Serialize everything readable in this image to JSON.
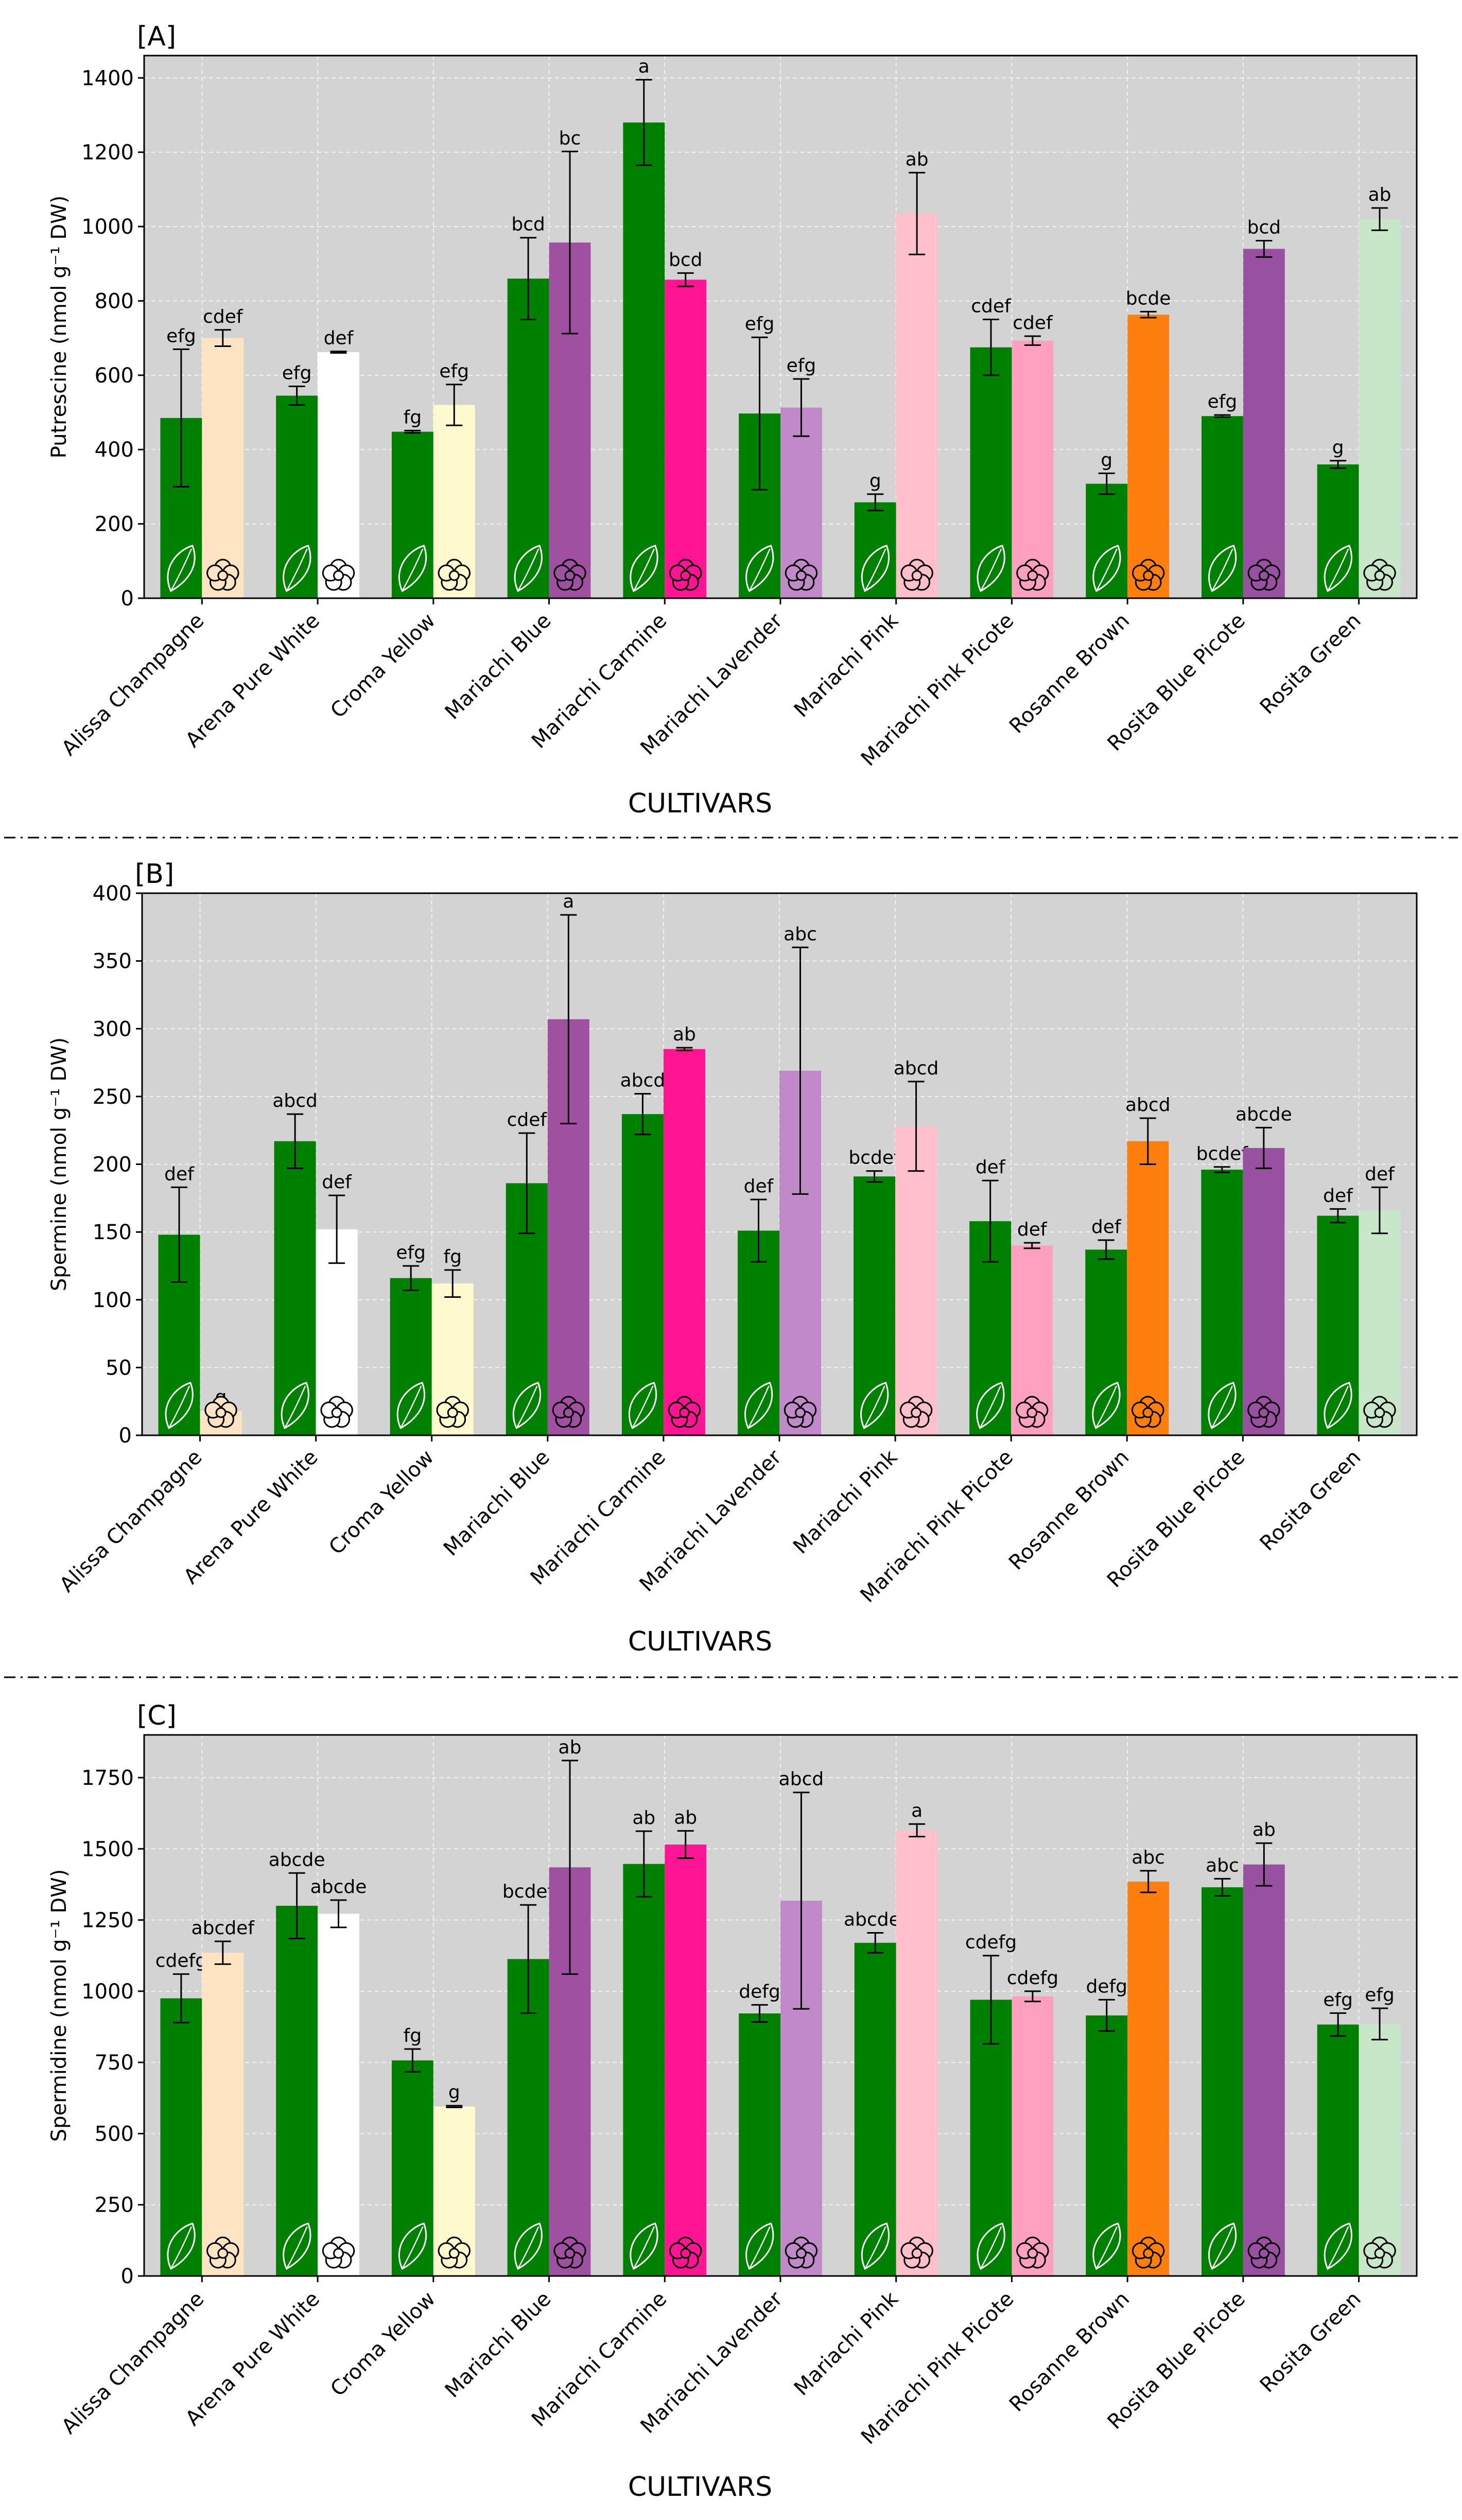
{
  "colors": {
    "background": "#d3d3d3",
    "leaf": "#008000",
    "grid": "#f2f2f2",
    "separator": "#000000"
  },
  "figure": {
    "xlabel": "CULTIVARS",
    "categories": [
      "Alissa Champagne",
      "Arena Pure White",
      "Croma Yellow",
      "Mariachi Blue",
      "Mariachi Carmine",
      "Mariachi Lavender",
      "Mariachi Pink",
      "Mariachi Pink Picote",
      "Rosanne Brown",
      "Rosita Blue Picote",
      "Rosita Green"
    ],
    "flower_colors": [
      "#ffe4c4",
      "#ffffff",
      "#fffacd",
      "#a050a0",
      "#ff1493",
      "#c08ac8",
      "#ffc0cb",
      "#ffa0c0",
      "#ff7f0e",
      "#9850a0",
      "#c8e6c8"
    ],
    "series_names": [
      "Leaf",
      "Flower"
    ],
    "icon_names": [
      "leaf-icon",
      "flower-icon"
    ]
  },
  "chart_data": [
    {
      "type": "bar",
      "tag": "[A]",
      "ylabel": "Putrescine (nmol g⁻¹ DW)",
      "ylim": [
        0,
        1460
      ],
      "yticks": [
        0,
        200,
        400,
        600,
        800,
        1000,
        1200,
        1400
      ],
      "xlabel": "CULTIVARS",
      "series": [
        {
          "name": "Leaf",
          "values": [
            485,
            545,
            448,
            860,
            1280,
            497,
            258,
            675,
            308,
            490,
            360
          ],
          "errors": [
            185,
            25,
            3,
            110,
            115,
            205,
            22,
            75,
            28,
            3,
            10
          ],
          "letters": [
            "efg",
            "efg",
            "fg",
            "bcd",
            "a",
            "efg",
            "g",
            "cdef",
            "g",
            "efg",
            "g"
          ]
        },
        {
          "name": "Flower",
          "values": [
            700,
            662,
            520,
            957,
            857,
            513,
            1035,
            693,
            763,
            940,
            1020
          ],
          "errors": [
            22,
            2,
            55,
            245,
            18,
            77,
            110,
            12,
            8,
            22,
            30
          ],
          "letters": [
            "cdef",
            "def",
            "efg",
            "bc",
            "bcd",
            "efg",
            "ab",
            "cdef",
            "bcde",
            "bcd",
            "ab"
          ]
        }
      ]
    },
    {
      "type": "bar",
      "tag": "[B]",
      "ylabel": "Spermine (nmol g⁻¹ DW)",
      "ylim": [
        0,
        400
      ],
      "yticks": [
        0,
        50,
        100,
        150,
        200,
        250,
        300,
        350,
        400
      ],
      "xlabel": "CULTIVARS",
      "series": [
        {
          "name": "Leaf",
          "values": [
            148,
            217,
            116,
            186,
            237,
            151,
            191,
            158,
            137,
            196,
            162
          ],
          "errors": [
            35,
            20,
            9,
            37,
            15,
            23,
            4,
            30,
            7,
            2,
            5
          ],
          "letters": [
            "def",
            "abcd",
            "efg",
            "cdef",
            "abcd",
            "def",
            "bcdef",
            "def",
            "def",
            "bcdef",
            "def"
          ]
        },
        {
          "name": "Flower",
          "values": [
            18,
            152,
            112,
            307,
            285,
            269,
            228,
            140,
            217,
            212,
            166
          ],
          "errors": [
            0.5,
            25,
            10,
            77,
            1,
            91,
            33,
            2,
            17,
            15,
            17
          ],
          "letters": [
            "g",
            "def",
            "fg",
            "a",
            "ab",
            "abc",
            "abcd",
            "def",
            "abcd",
            "abcde",
            "def"
          ]
        }
      ]
    },
    {
      "type": "bar",
      "tag": "[C]",
      "ylabel": "Spermidine (nmol g⁻¹ DW)",
      "ylim": [
        0,
        1900
      ],
      "yticks": [
        0,
        250,
        500,
        750,
        1000,
        1250,
        1500,
        1750
      ],
      "xlabel": "CULTIVARS",
      "series": [
        {
          "name": "Leaf",
          "values": [
            975,
            1300,
            757,
            1113,
            1447,
            922,
            1170,
            970,
            915,
            1365,
            883
          ],
          "errors": [
            85,
            115,
            40,
            190,
            115,
            30,
            35,
            155,
            55,
            30,
            40
          ],
          "letters": [
            "cdefg",
            "abcde",
            "fg",
            "bcdef",
            "ab",
            "defg",
            "abcdef",
            "cdefg",
            "defg",
            "abc",
            "efg"
          ]
        },
        {
          "name": "Flower",
          "values": [
            1135,
            1272,
            595,
            1435,
            1515,
            1318,
            1565,
            982,
            1385,
            1445,
            885
          ],
          "errors": [
            40,
            48,
            3,
            375,
            48,
            380,
            22,
            18,
            38,
            75,
            55
          ],
          "letters": [
            "abcdef",
            "abcde",
            "g",
            "ab",
            "ab",
            "abcd",
            "a",
            "cdefg",
            "abc",
            "ab",
            "efg"
          ]
        }
      ]
    }
  ]
}
